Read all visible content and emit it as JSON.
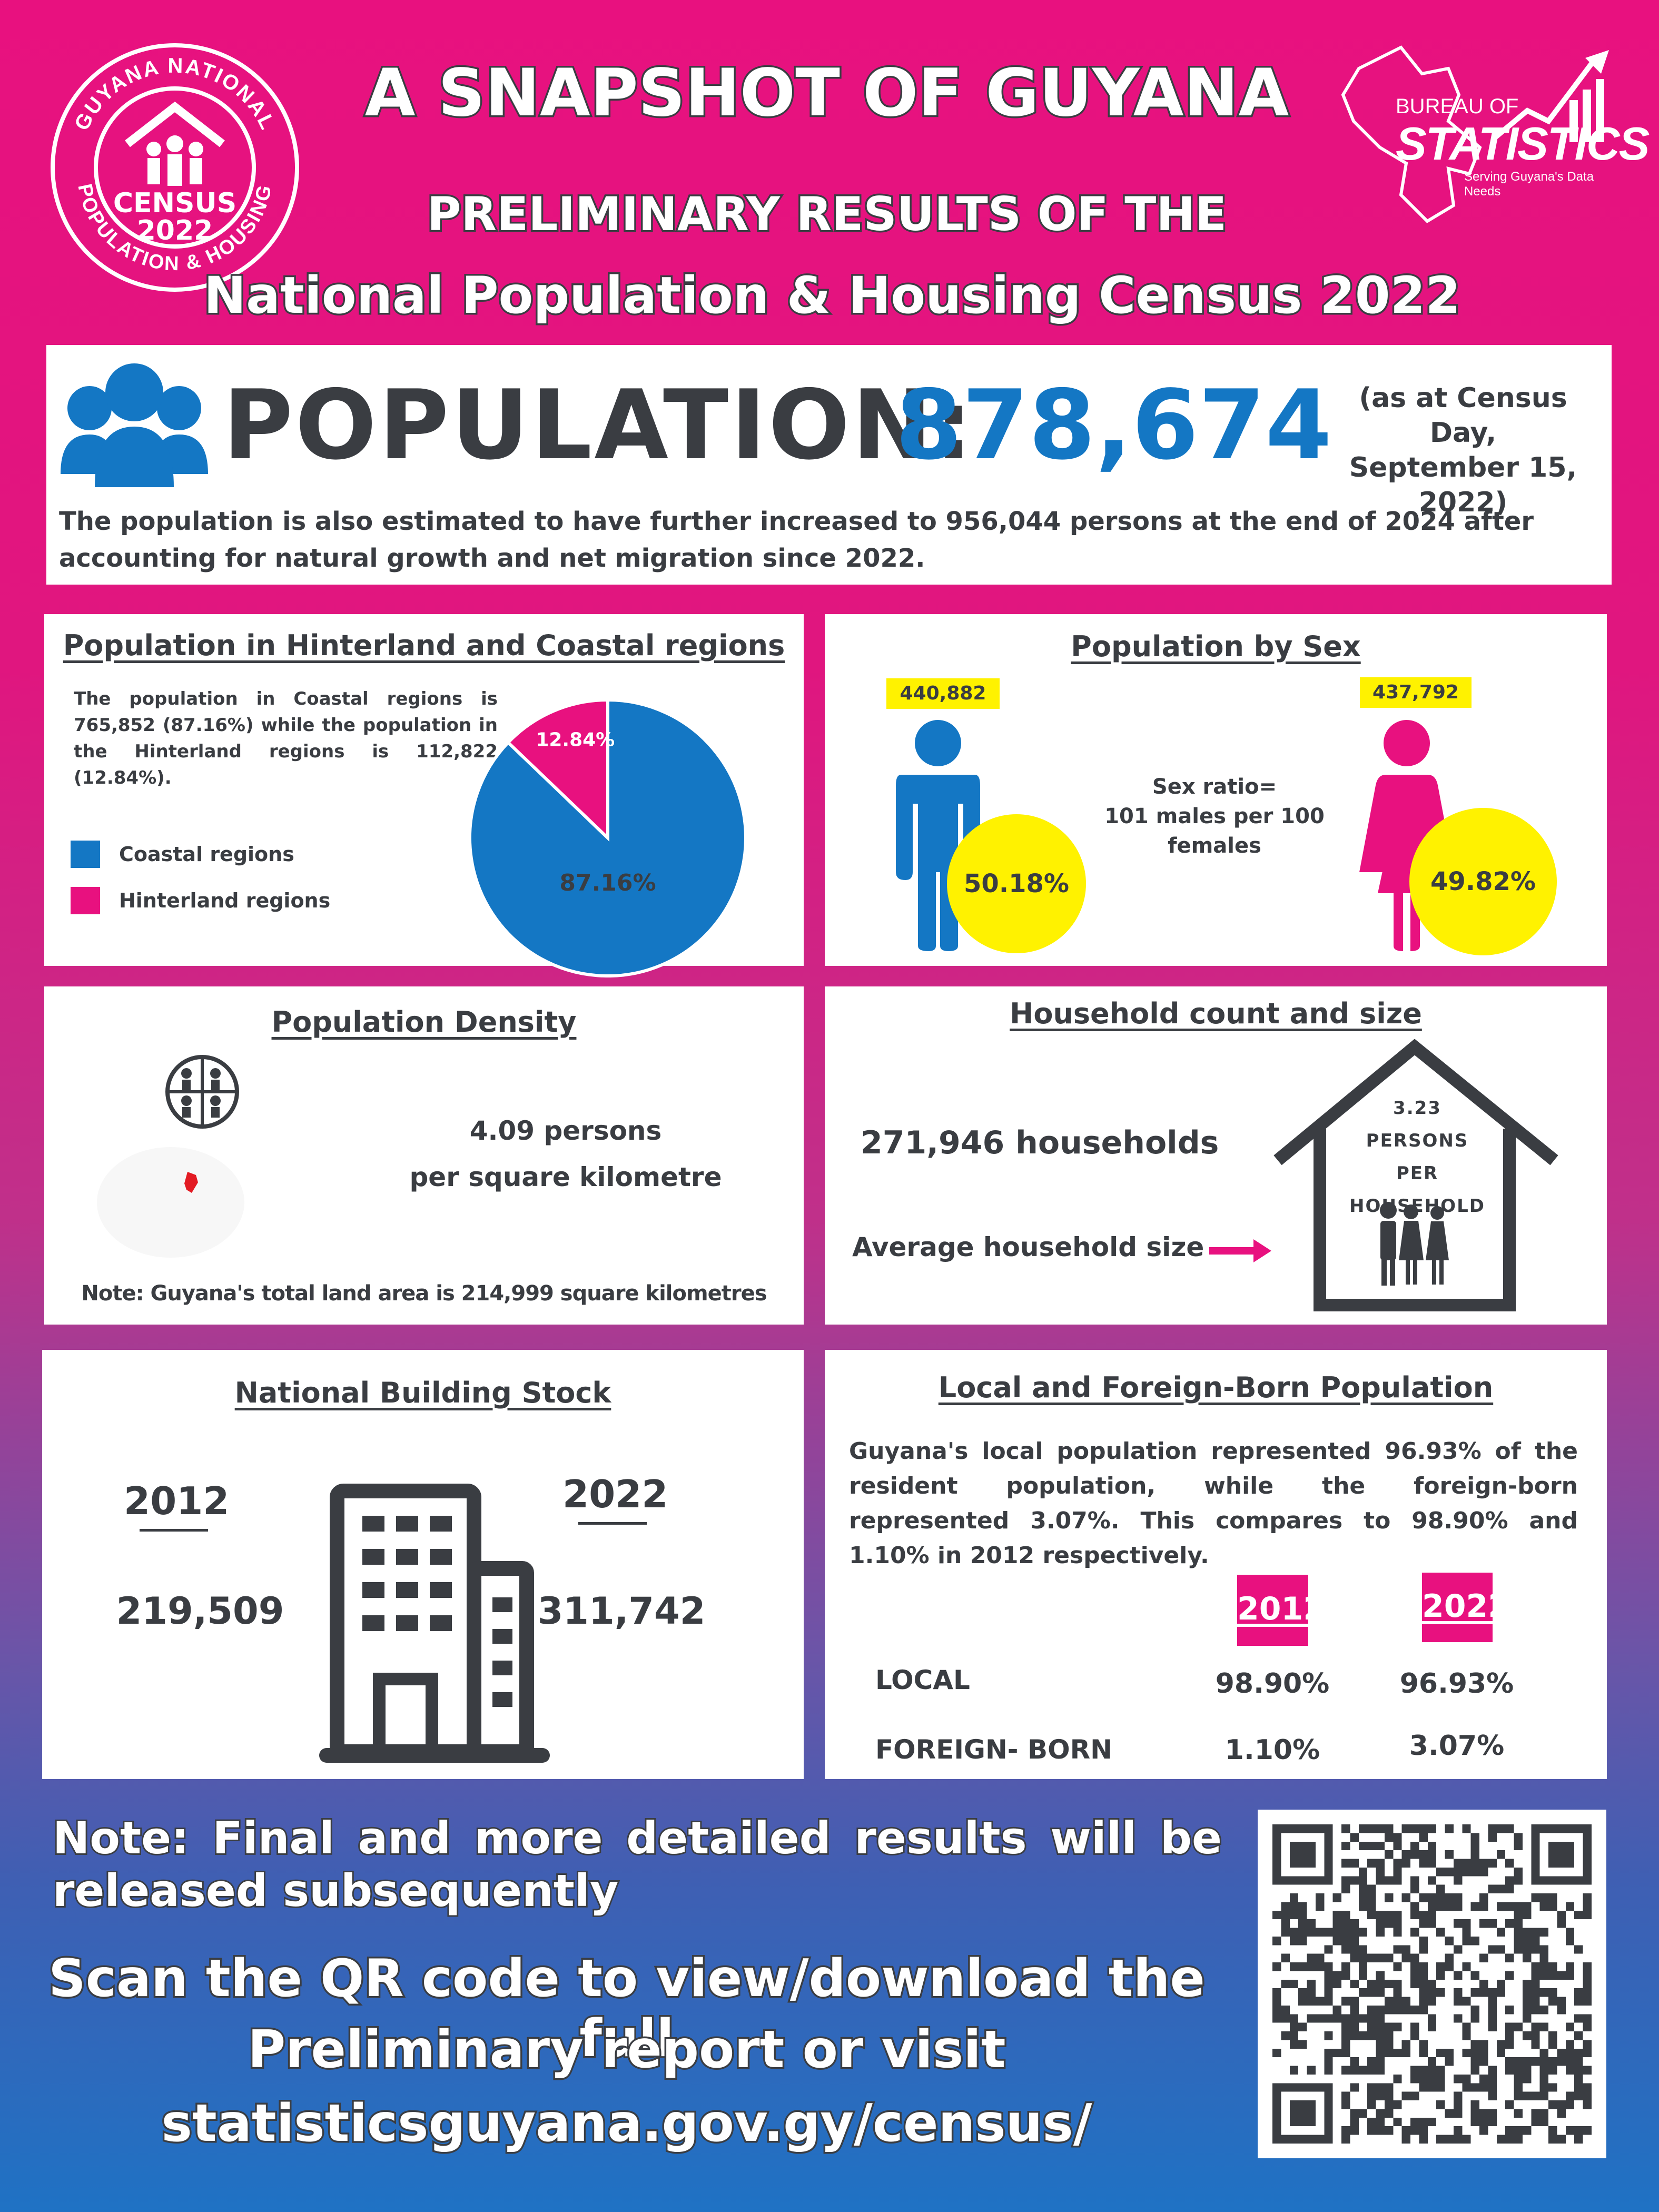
{
  "header": {
    "title": "A SNAPSHOT OF GUYANA",
    "subtitle1": "PRELIMINARY RESULTS OF THE",
    "subtitle2": "National Population & Housing Census 2022"
  },
  "census_logo": {
    "top_arc": "GUYANA NATIONAL",
    "bottom_arc": "POPULATION & HOUSING",
    "center1": "CENSUS",
    "center2": "2022"
  },
  "bureau_logo": {
    "line1": "BUREAU OF",
    "line2": "STATISTICS",
    "tagline": "Serving Guyana's Data Needs"
  },
  "population": {
    "label": "POPULATION:",
    "value": "878,674",
    "note_line1": "(as at Census Day,",
    "note_line2": "September 15,",
    "note_line3": "2022)",
    "estimate_text": "The population is also estimated to have further increased to 956,044 persons at the end of 2024 after accounting for natural growth and net migration since 2022."
  },
  "hinterland": {
    "title": "Population in Hinterland and Coastal regions",
    "text": "The population in Coastal regions is 765,852 (87.16%) while the population in the Hinterland regions is 112,822 (12.84%).",
    "legend_coastal": "Coastal regions",
    "legend_hinterland": "Hinterland regions",
    "coastal_label": "87.16%",
    "hinterland_label": "12.84%",
    "colors": {
      "coastal": "#1477c4",
      "hinterland": "#e8117f"
    }
  },
  "chart_data": {
    "type": "pie",
    "categories": [
      "Coastal regions",
      "Hinterland regions"
    ],
    "values": [
      87.16,
      12.84
    ]
  },
  "sex": {
    "title": "Population by Sex",
    "male_count": "440,882",
    "female_count": "437,792",
    "male_pct": "50.18%",
    "female_pct": "49.82%",
    "ratio_line1": "Sex ratio=",
    "ratio_line2": "101 males per 100",
    "ratio_line3": "females"
  },
  "density": {
    "title": "Population Density",
    "value_line1": "4.09 persons",
    "value_line2": "per square kilometre",
    "note": "Note: Guyana's total land area is 214,999 square kilometres"
  },
  "household": {
    "title": "Household count and size",
    "count": "271,946 households",
    "avg_label": "Average household size",
    "house_line1": "3.23",
    "house_line2": "PERSONS",
    "house_line3": "PER",
    "house_line4": "HOUSEHOLD"
  },
  "building": {
    "title": "National Building Stock",
    "year1": "2012",
    "value1": "219,509",
    "year2": "2022",
    "value2": "311,742"
  },
  "foreign": {
    "title": "Local and Foreign-Born Population",
    "text": "Guyana's local population represented 96.93% of the resident population, while the foreign-born represented 3.07%. This compares to 98.90% and 1.10% in 2012 respectively.",
    "col1": "2012",
    "col2": "2022",
    "rows": [
      {
        "label": "LOCAL",
        "v2012": "98.90%",
        "v2022": "96.93%"
      },
      {
        "label": "FOREIGN- BORN",
        "v2012": "1.10%",
        "v2022": "3.07%"
      }
    ]
  },
  "footer": {
    "note": "Note: Final and more detailed results will be released subsequently",
    "scan_line1": "Scan the QR code to view/download the full",
    "scan_line2": "Preliminary report or visit",
    "scan_line3": "statisticsguyana.gov.gy/census/"
  }
}
